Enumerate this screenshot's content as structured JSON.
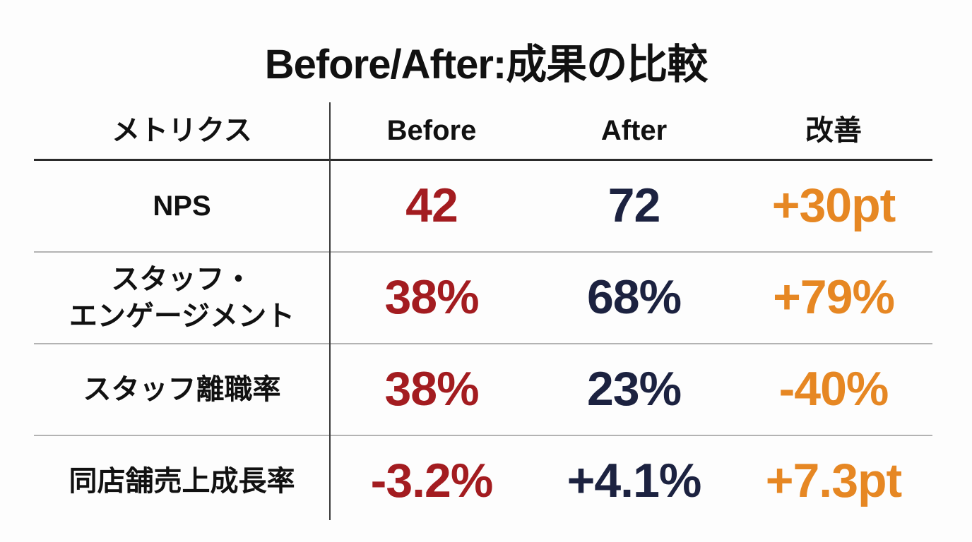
{
  "title": "Before/After:成果の比較",
  "colors": {
    "text": "#111111",
    "before": "#a31c20",
    "after": "#1c2240",
    "improvement": "#e68723",
    "divider": "#3a3a3a",
    "header_line": "#2b2b2b",
    "row_line": "#b3b3b3"
  },
  "table": {
    "headers": {
      "metric": "メトリクス",
      "before": "Before",
      "after": "After",
      "improvement": "改善"
    },
    "rows": [
      {
        "metric": "NPS",
        "before": "42",
        "after": "72",
        "improvement": "+30pt"
      },
      {
        "metric": "スタッフ・\nエンゲージメント",
        "before": "38%",
        "after": "68%",
        "improvement": "+79%"
      },
      {
        "metric": "スタッフ離職率",
        "before": "38%",
        "after": "23%",
        "improvement": "-40%"
      },
      {
        "metric": "同店舗売上成長率",
        "before": "-3.2%",
        "after": "+4.1%",
        "improvement": "+7.3pt"
      }
    ]
  },
  "chart_data": {
    "type": "table",
    "title": "Before/After:成果の比較",
    "columns": [
      "メトリクス",
      "Before",
      "After",
      "改善"
    ],
    "rows": [
      [
        "NPS",
        "42",
        "72",
        "+30pt"
      ],
      [
        "スタッフ・エンゲージメント",
        "38%",
        "68%",
        "+79%"
      ],
      [
        "スタッフ離職率",
        "38%",
        "23%",
        "-40%"
      ],
      [
        "同店舗売上成長率",
        "-3.2%",
        "+4.1%",
        "+7.3pt"
      ]
    ],
    "column_colors": {
      "Before": "#a31c20",
      "After": "#1c2240",
      "改善": "#e68723"
    },
    "legend_position": "none",
    "grid": "horizontal-rules-with-single-vertical-divider"
  }
}
